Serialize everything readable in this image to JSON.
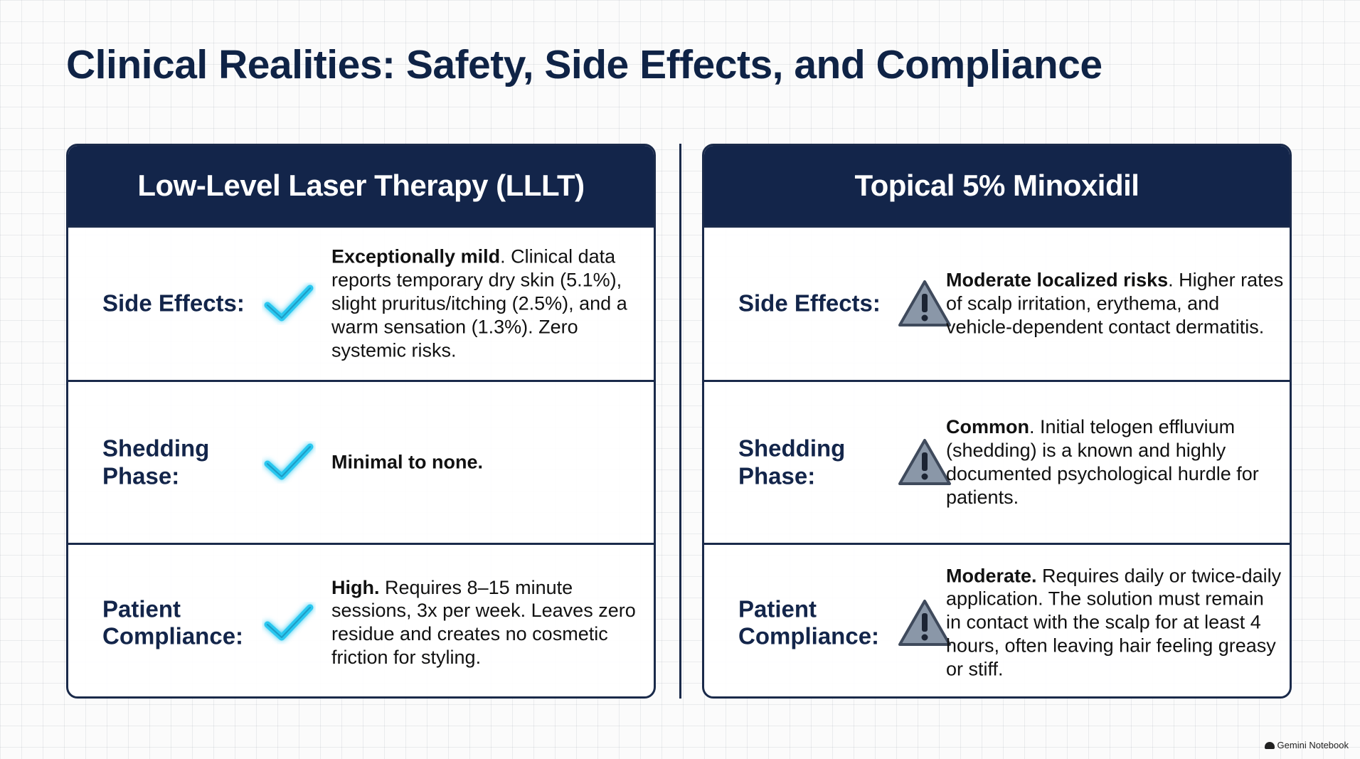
{
  "title": "Clinical Realities: Safety, Side Effects, and Compliance",
  "colors": {
    "navy": "#13254a",
    "check": "#29c8f0",
    "warning": "#8a97a8"
  },
  "panels": [
    {
      "header": "Low-Level Laser Therapy (LLLT)",
      "icon": "checkmark-icon",
      "rows": [
        {
          "label": "Side Effects:",
          "lead": "Exceptionally mild",
          "text": ". Clinical data reports temporary dry skin (5.1%), slight pruritus/itching (2.5%), and a warm sensation (1.3%). Zero systemic risks."
        },
        {
          "label": "Shedding Phase:",
          "lead": "Minimal to none.",
          "text": ""
        },
        {
          "label": "Patient Compliance:",
          "lead": "High.",
          "text": " Requires 8–15 minute sessions, 3x per week. Leaves zero residue and creates no cosmetic friction for styling."
        }
      ]
    },
    {
      "header": "Topical 5% Minoxidil",
      "icon": "warning-icon",
      "rows": [
        {
          "label": "Side Effects:",
          "lead": "Moderate localized risks",
          "text": ". Higher rates of scalp irritation, erythema, and vehicle-dependent contact dermatitis."
        },
        {
          "label": "Shedding Phase:",
          "lead": "Common",
          "text": ". Initial telogen effluvium (shedding) is a known and highly documented psychological hurdle for patients."
        },
        {
          "label": "Patient Compliance:",
          "lead": "Moderate.",
          "text": " Requires daily or twice-daily application. The solution must remain in contact with the scalp for at least 4 hours, often leaving hair feeling greasy or stiff."
        }
      ]
    }
  ],
  "watermark": "Gemini Notebook"
}
